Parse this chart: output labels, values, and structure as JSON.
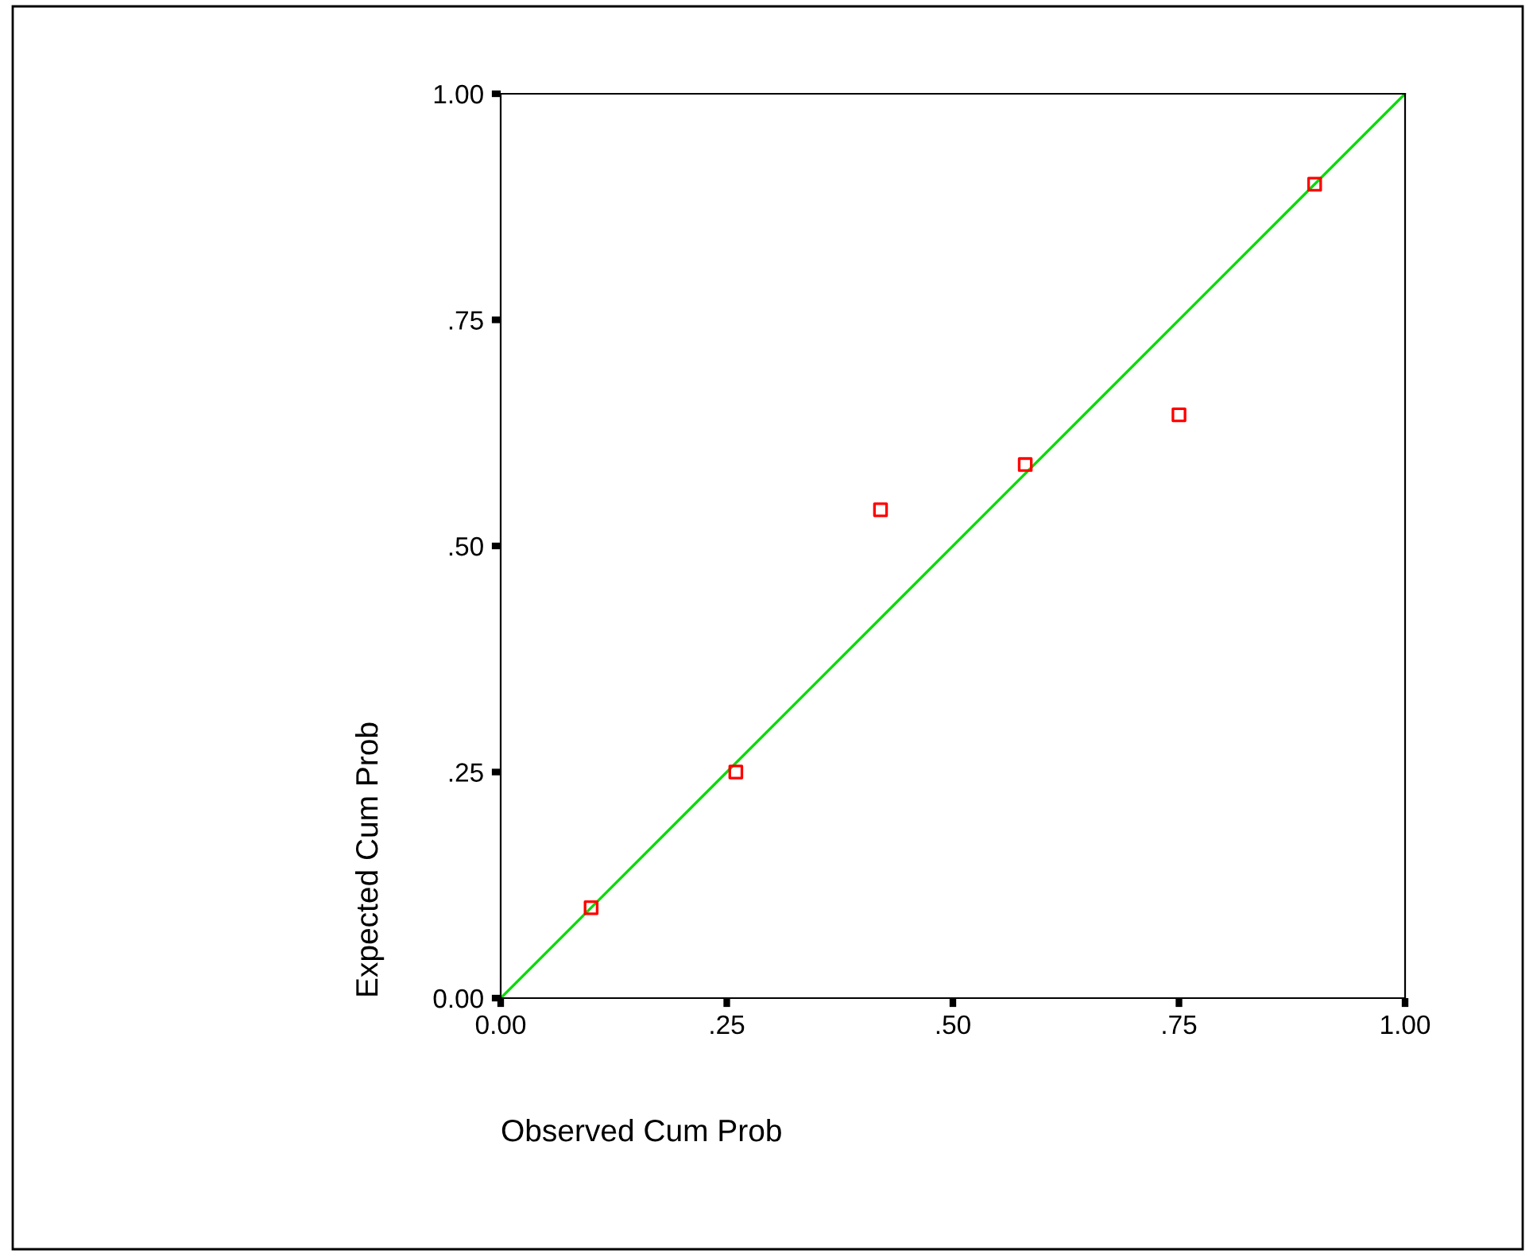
{
  "chart_data": {
    "type": "scatter",
    "xlabel": "Observed Cum Prob",
    "ylabel": "Expected Cum Prob",
    "x": [
      0.1,
      0.26,
      0.42,
      0.58,
      0.75,
      0.9
    ],
    "series": [
      {
        "color": "#ff0000",
        "marker": "square",
        "values": [
          0.1,
          0.25,
          0.54,
          0.59,
          0.645,
          0.9
        ]
      },
      {
        "type": "line",
        "color": "#00dd00",
        "x": [
          0,
          1
        ],
        "values": [
          0,
          1
        ],
        "marker": "none",
        "line_style": "solid"
      }
    ],
    "xlim": [
      0,
      1
    ],
    "ylim": [
      0,
      1
    ],
    "xticks": [
      {
        "value": 0,
        "label": "0.00"
      },
      {
        "value": 0.25,
        "label": ".25"
      },
      {
        "value": 0.5,
        "label": ".50"
      },
      {
        "value": 0.75,
        "label": ".75"
      },
      {
        "value": 1,
        "label": "1.00"
      }
    ],
    "yticks": [
      {
        "value": 0,
        "label": "0.00"
      },
      {
        "value": 0.25,
        "label": ".25"
      },
      {
        "value": 0.5,
        "label": ".50"
      },
      {
        "value": 0.75,
        "label": ".75"
      },
      {
        "value": 1,
        "label": "1.00"
      }
    ],
    "grid": false,
    "legend": false
  }
}
